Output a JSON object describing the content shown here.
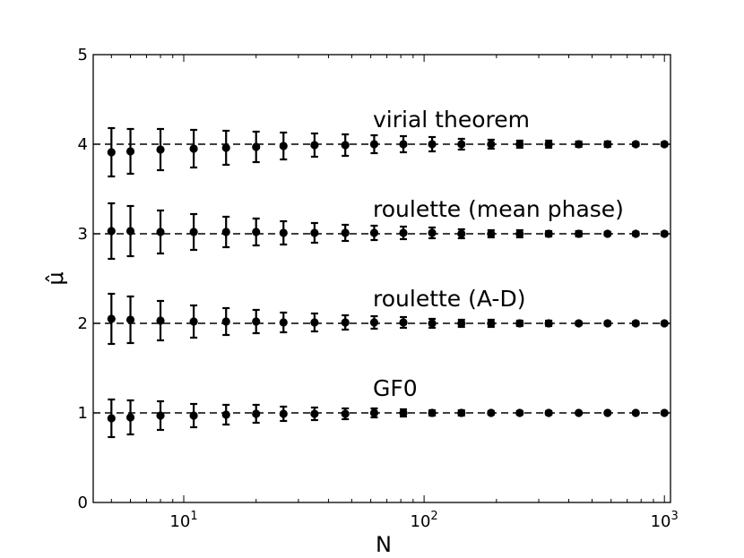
{
  "chart_data": {
    "type": "scatter",
    "title": "",
    "xlabel": "N",
    "ylabel": "μ̂",
    "xscale": "log",
    "xlim": [
      4.2,
      1060
    ],
    "ylim": [
      0,
      5
    ],
    "yticks": [
      0,
      1,
      2,
      3,
      4,
      5
    ],
    "xticks": [
      {
        "value": 10,
        "base": "10",
        "exp": "1"
      },
      {
        "value": 100,
        "base": "10",
        "exp": "2"
      },
      {
        "value": 1000,
        "base": "10",
        "exp": "3"
      }
    ],
    "grid": false,
    "legend": "none",
    "x": [
      5,
      6,
      8,
      11,
      15,
      20,
      26,
      35,
      47,
      62,
      82,
      108,
      143,
      190,
      250,
      330,
      440,
      580,
      760,
      1000
    ],
    "series": [
      {
        "name": "virial theorem",
        "reference": 4,
        "values": [
          3.91,
          3.92,
          3.94,
          3.95,
          3.96,
          3.97,
          3.98,
          3.99,
          3.99,
          4.0,
          4.0,
          4.0,
          4.0,
          4.0,
          4.0,
          4.0,
          4.0,
          4.0,
          4.0,
          4.0
        ],
        "errors": [
          0.27,
          0.25,
          0.23,
          0.21,
          0.19,
          0.17,
          0.15,
          0.13,
          0.12,
          0.1,
          0.09,
          0.08,
          0.06,
          0.05,
          0.04,
          0.04,
          0.03,
          0.03,
          0.02,
          0.02
        ]
      },
      {
        "name": "roulette (mean phase)",
        "reference": 3,
        "values": [
          3.03,
          3.03,
          3.02,
          3.02,
          3.02,
          3.02,
          3.01,
          3.01,
          3.01,
          3.01,
          3.01,
          3.01,
          3.0,
          3.0,
          3.0,
          3.0,
          3.0,
          3.0,
          3.0,
          3.0
        ],
        "errors": [
          0.31,
          0.28,
          0.24,
          0.2,
          0.17,
          0.15,
          0.13,
          0.11,
          0.09,
          0.08,
          0.07,
          0.06,
          0.05,
          0.04,
          0.04,
          0.03,
          0.03,
          0.02,
          0.02,
          0.02
        ]
      },
      {
        "name": "roulette (A-D)",
        "reference": 2,
        "values": [
          2.05,
          2.04,
          2.03,
          2.02,
          2.02,
          2.02,
          2.01,
          2.01,
          2.01,
          2.01,
          2.01,
          2.0,
          2.0,
          2.0,
          2.0,
          2.0,
          2.0,
          2.0,
          2.0,
          2.0
        ],
        "errors": [
          0.28,
          0.26,
          0.22,
          0.18,
          0.15,
          0.13,
          0.11,
          0.1,
          0.08,
          0.07,
          0.06,
          0.05,
          0.04,
          0.04,
          0.03,
          0.03,
          0.02,
          0.02,
          0.02,
          0.01
        ]
      },
      {
        "name": "GF0",
        "reference": 1,
        "values": [
          0.94,
          0.95,
          0.97,
          0.97,
          0.98,
          0.99,
          0.99,
          0.99,
          0.99,
          1.0,
          1.0,
          1.0,
          1.0,
          1.0,
          1.0,
          1.0,
          1.0,
          1.0,
          1.0,
          1.0
        ],
        "errors": [
          0.21,
          0.19,
          0.16,
          0.13,
          0.11,
          0.1,
          0.08,
          0.07,
          0.06,
          0.05,
          0.04,
          0.03,
          0.03,
          0.02,
          0.02,
          0.02,
          0.01,
          0.01,
          0.01,
          0.01
        ]
      }
    ],
    "colors": {
      "markers": "#000000",
      "reference_line": "#000000"
    }
  }
}
